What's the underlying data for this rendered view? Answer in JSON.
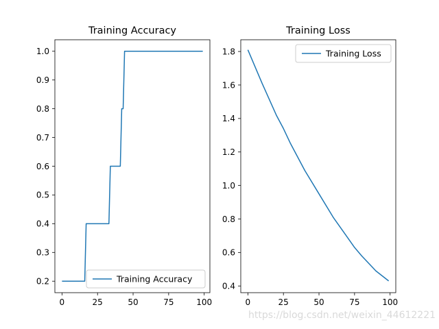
{
  "chart_data": [
    {
      "type": "line",
      "title": "Training Accuracy",
      "xlabel": "",
      "ylabel": "",
      "xlim": [
        -5,
        104
      ],
      "ylim": [
        0.16,
        1.04
      ],
      "xticks": [
        0,
        25,
        50,
        75,
        100
      ],
      "yticks": [
        0.2,
        0.3,
        0.4,
        0.5,
        0.6,
        0.7,
        0.8,
        0.9,
        1.0
      ],
      "xtick_labels": [
        "0",
        "25",
        "50",
        "75",
        "100"
      ],
      "ytick_labels": [
        "0.2",
        "0.3",
        "0.4",
        "0.5",
        "0.6",
        "0.7",
        "0.8",
        "0.9",
        "1.0"
      ],
      "grid": false,
      "legend_position": "lower right",
      "series": [
        {
          "name": "Training Accuracy",
          "color": "#1f77b4",
          "x": [
            0,
            16,
            17,
            33,
            34,
            41,
            42,
            43,
            44,
            99
          ],
          "y": [
            0.2,
            0.2,
            0.4,
            0.4,
            0.6,
            0.6,
            0.8,
            0.8,
            1.0,
            1.0
          ]
        }
      ]
    },
    {
      "type": "line",
      "title": "Training Loss",
      "xlabel": "",
      "ylabel": "",
      "xlim": [
        -5,
        104
      ],
      "ylim": [
        0.36,
        1.87
      ],
      "xticks": [
        0,
        25,
        50,
        75,
        100
      ],
      "yticks": [
        0.4,
        0.6,
        0.8,
        1.0,
        1.2,
        1.4,
        1.6,
        1.8
      ],
      "xtick_labels": [
        "0",
        "25",
        "50",
        "75",
        "100"
      ],
      "ytick_labels": [
        "0.4",
        "0.6",
        "0.8",
        "1.0",
        "1.2",
        "1.4",
        "1.6",
        "1.8"
      ],
      "grid": false,
      "legend_position": "upper right",
      "series": [
        {
          "name": "Training Loss",
          "color": "#1f77b4",
          "x": [
            0,
            10,
            20,
            25,
            30,
            40,
            50,
            60,
            70,
            75,
            80,
            90,
            99
          ],
          "y": [
            1.81,
            1.61,
            1.42,
            1.34,
            1.25,
            1.09,
            0.95,
            0.81,
            0.69,
            0.63,
            0.58,
            0.49,
            0.43
          ]
        }
      ]
    }
  ],
  "watermark": "https://blog.csdn.net/weixin_44612221"
}
